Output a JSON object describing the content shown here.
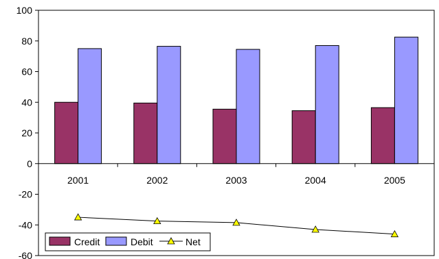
{
  "chart_data": {
    "type": "bar",
    "categories": [
      "2001",
      "2002",
      "2003",
      "2004",
      "2005"
    ],
    "series": [
      {
        "name": "Credit",
        "kind": "bar",
        "color": "#993366",
        "values": [
          40,
          39.5,
          35.5,
          34.5,
          36.5
        ]
      },
      {
        "name": "Debit",
        "kind": "bar",
        "color": "#9999ff",
        "values": [
          75,
          76.5,
          74.5,
          77,
          82.5
        ]
      },
      {
        "name": "Net",
        "kind": "line",
        "color": "#000000",
        "marker_color": "#ffff00",
        "values": [
          -35,
          -37.5,
          -38.5,
          -43,
          -46
        ]
      }
    ],
    "ylim": [
      -60,
      100
    ],
    "yticks": [
      -60,
      -40,
      -20,
      0,
      20,
      40,
      60,
      80,
      100
    ],
    "legend_position": "bottom-left",
    "grid": false
  }
}
